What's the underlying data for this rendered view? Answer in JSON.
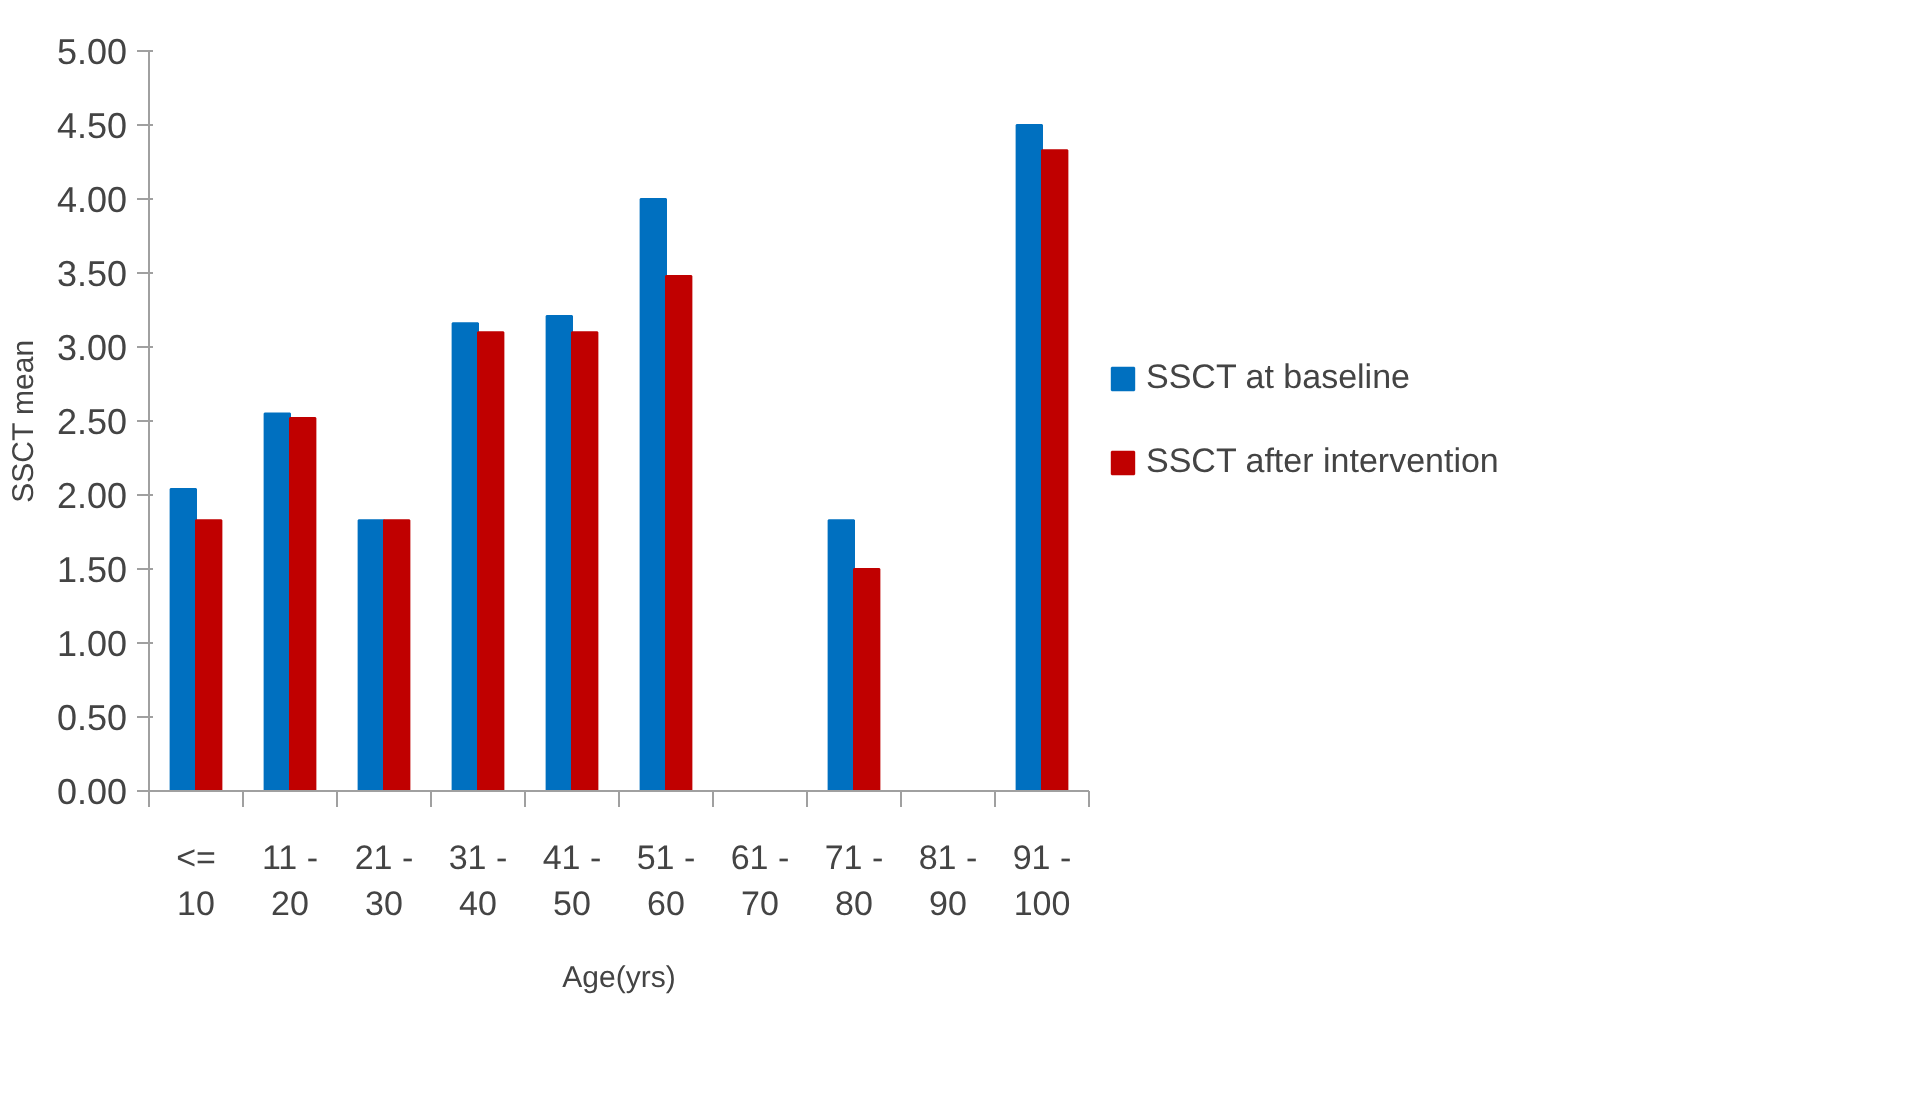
{
  "chart_data": {
    "type": "bar",
    "xlabel": "Age(yrs)",
    "ylabel": "SSCT mean",
    "categories": [
      "<= 10",
      "11 - 20",
      "21 - 30",
      "31 - 40",
      "41 - 50",
      "51 - 60",
      "61 - 70",
      "71 - 80",
      "81 - 90",
      "91 - 100"
    ],
    "series": [
      {
        "name": "SSCT at baseline",
        "color": "#0070c0",
        "values": [
          2.04,
          2.55,
          1.83,
          3.16,
          3.21,
          4.0,
          null,
          1.83,
          null,
          4.5
        ]
      },
      {
        "name": "SSCT after intervention",
        "color": "#c00000",
        "values": [
          1.83,
          2.52,
          1.83,
          3.1,
          3.1,
          3.48,
          null,
          1.5,
          null,
          4.33
        ]
      }
    ],
    "ylim": [
      0,
      5
    ],
    "yticks": [
      {
        "value": 0,
        "label": "0.00"
      },
      {
        "value": 0.5,
        "label": "0.50"
      },
      {
        "value": 1,
        "label": "1.00"
      },
      {
        "value": 1.5,
        "label": "1.50"
      },
      {
        "value": 2,
        "label": "2.00"
      },
      {
        "value": 2.5,
        "label": "2.50"
      },
      {
        "value": 3,
        "label": "3.00"
      },
      {
        "value": 3.5,
        "label": "3.50"
      },
      {
        "value": 4,
        "label": "4.00"
      },
      {
        "value": 4.5,
        "label": "4.50"
      },
      {
        "value": 5,
        "label": "5.00"
      }
    ],
    "grid": false,
    "legend": "right"
  }
}
